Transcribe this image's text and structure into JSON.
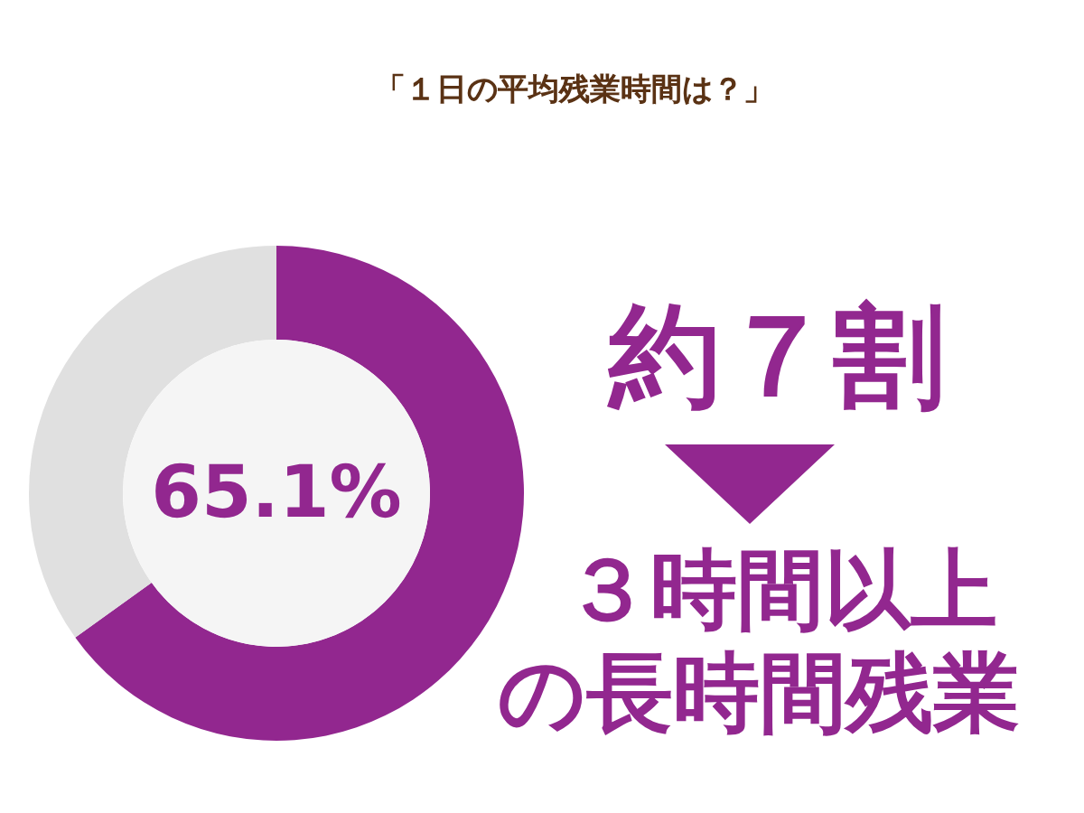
{
  "chart_data": {
    "type": "donut",
    "title": "「１日の平均残業時間は？」",
    "categories": [
      null,
      null
    ],
    "values": [
      65.1,
      34.9
    ],
    "colors": [
      "#92278f",
      "#e0e0e0"
    ],
    "annotations": [
      "65.1%",
      "約７割",
      "３時間以上",
      "の長時間残業"
    ]
  }
}
